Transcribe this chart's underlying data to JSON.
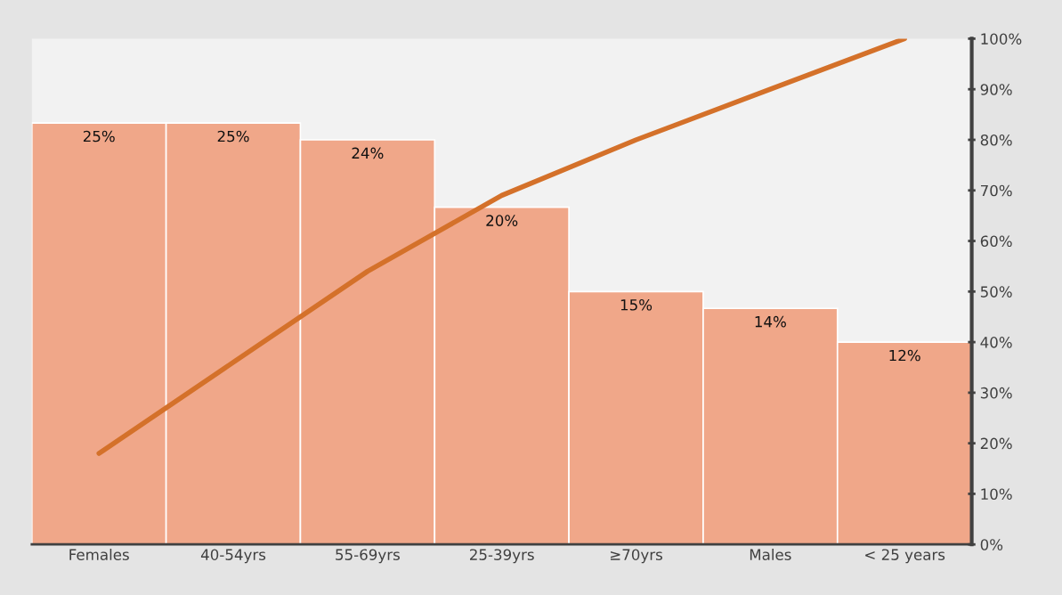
{
  "chart_data": {
    "type": "bar",
    "categories": [
      "Females",
      "40-54yrs",
      "55-69yrs",
      "25-39yrs",
      "≥70yrs",
      "Males",
      "< 25 years"
    ],
    "series": [
      {
        "color": "#f0a789",
        "values": [
          25,
          25,
          24,
          20,
          15,
          14,
          12
        ],
        "value_labels": [
          "25%",
          "25%",
          "24%",
          "20%",
          "15%",
          "14%",
          "12%"
        ]
      },
      {
        "type": "line",
        "axis": "y2",
        "color": "#d4712a",
        "values": [
          18,
          36,
          54,
          69,
          80,
          90,
          100
        ]
      }
    ],
    "ylim": [
      0,
      30
    ],
    "y2lim": [
      0,
      100
    ],
    "y2ticks": [
      {
        "value": 0,
        "label": "0%"
      },
      {
        "value": 10,
        "label": "10%"
      },
      {
        "value": 20,
        "label": "20%"
      },
      {
        "value": 30,
        "label": "30%"
      },
      {
        "value": 40,
        "label": "40%"
      },
      {
        "value": 50,
        "label": "50%"
      },
      {
        "value": 60,
        "label": "60%"
      },
      {
        "value": 70,
        "label": "70%"
      },
      {
        "value": 80,
        "label": "80%"
      },
      {
        "value": 90,
        "label": "90%"
      },
      {
        "value": 100,
        "label": "100%"
      }
    ],
    "marker": "none",
    "line_style": "solid"
  }
}
